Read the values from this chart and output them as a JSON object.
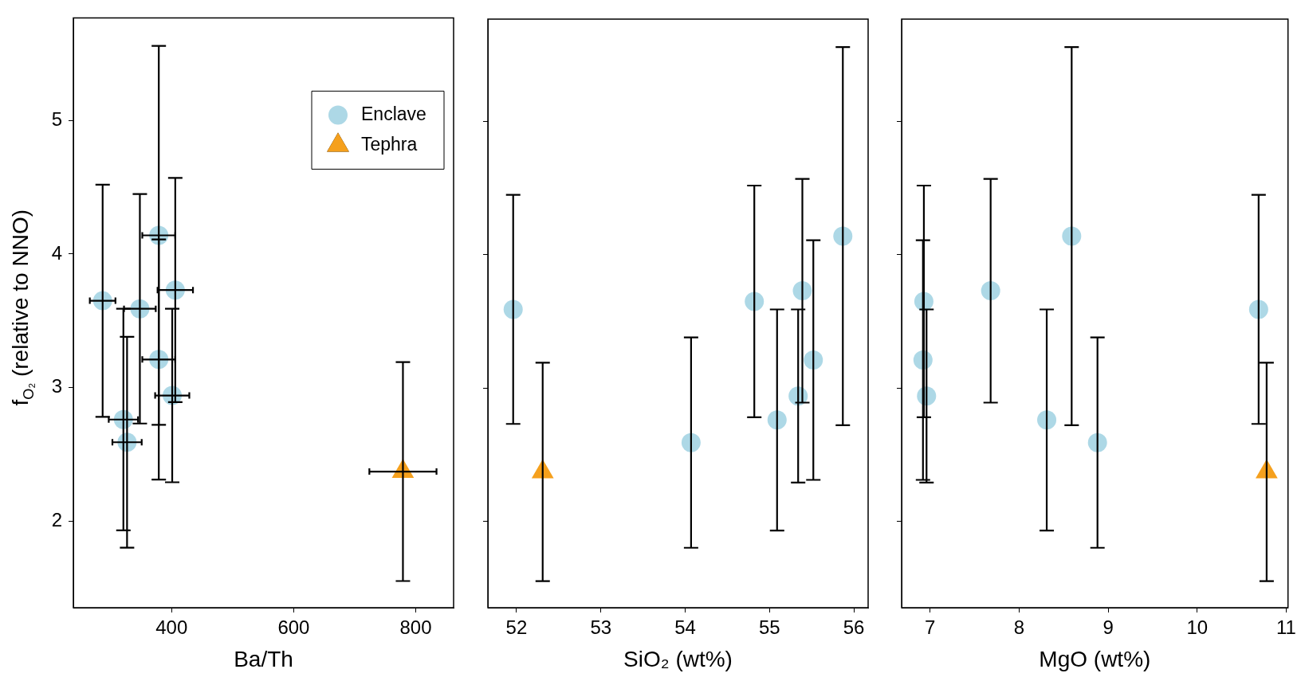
{
  "chart_data": [
    {
      "type": "scatter",
      "xlabel": "Ba/Th",
      "ylabel": "f$_{O₂}$ (relative to NNO)",
      "xlim": [
        239,
        862
      ],
      "xticks": [
        400,
        600,
        800
      ],
      "ylim": [
        1.35,
        5.77
      ],
      "yticks": [
        2,
        3,
        4,
        5
      ],
      "grid": false,
      "legend": "top right",
      "series": [
        {
          "name": "Enclave",
          "color": "#add8e6",
          "marker": "circle",
          "x": [
            379,
            406,
            287,
            348,
            379,
            401,
            321,
            327
          ],
          "values": [
            4.14,
            3.73,
            3.65,
            3.59,
            3.21,
            2.94,
            2.76,
            2.59
          ],
          "errors": [
            1.42,
            0.84,
            0.87,
            0.86,
            0.9,
            0.65,
            0.83,
            0.79
          ],
          "xerrors": [
            27,
            29,
            21,
            26,
            27,
            28,
            24,
            24
          ]
        },
        {
          "name": "Tephra",
          "color": "#f5a01d",
          "marker": "triangle",
          "x": [
            779
          ],
          "values": [
            2.37
          ],
          "errors": [
            0.82
          ],
          "xerrors": [
            55
          ]
        }
      ]
    },
    {
      "type": "scatter",
      "xlabel": "SiO₂ (wt%)",
      "xlim": [
        51.66,
        56.17
      ],
      "xticks": [
        52,
        53,
        54,
        55,
        56
      ],
      "ylim": [
        1.35,
        5.77
      ],
      "yticks": [
        2,
        3,
        4,
        5
      ],
      "grid": false,
      "tick_labels": "x",
      "series": [
        {
          "color": "#add8e6",
          "marker": "circle",
          "x": [
            55.87,
            55.39,
            54.82,
            51.96,
            55.52,
            55.34,
            55.09,
            54.07
          ],
          "values": [
            4.14,
            3.73,
            3.65,
            3.59,
            3.21,
            2.94,
            2.76,
            2.59
          ],
          "errors": [
            1.42,
            0.84,
            0.87,
            0.86,
            0.9,
            0.65,
            0.83,
            0.79
          ]
        },
        {
          "color": "#f5a01d",
          "marker": "triangle",
          "x": [
            52.31
          ],
          "values": [
            2.37
          ],
          "errors": [
            0.82
          ]
        }
      ]
    },
    {
      "type": "scatter",
      "xlabel": "MgO (wt%)",
      "xlim": [
        6.68,
        11.02
      ],
      "xticks": [
        7,
        8,
        9,
        10,
        11
      ],
      "ylim": [
        1.35,
        5.77
      ],
      "yticks": [
        2,
        3,
        4,
        5
      ],
      "grid": false,
      "tick_labels": "x",
      "series": [
        {
          "color": "#add8e6",
          "marker": "circle",
          "x": [
            8.59,
            7.68,
            6.93,
            10.69,
            6.92,
            6.96,
            8.31,
            8.88
          ],
          "values": [
            4.14,
            3.73,
            3.65,
            3.59,
            3.21,
            2.94,
            2.76,
            2.59
          ],
          "errors": [
            1.42,
            0.84,
            0.87,
            0.86,
            0.9,
            0.65,
            0.83,
            0.79
          ]
        },
        {
          "color": "#f5a01d",
          "marker": "triangle",
          "x": [
            10.78
          ],
          "values": [
            2.37
          ],
          "errors": [
            0.82
          ]
        }
      ]
    }
  ]
}
